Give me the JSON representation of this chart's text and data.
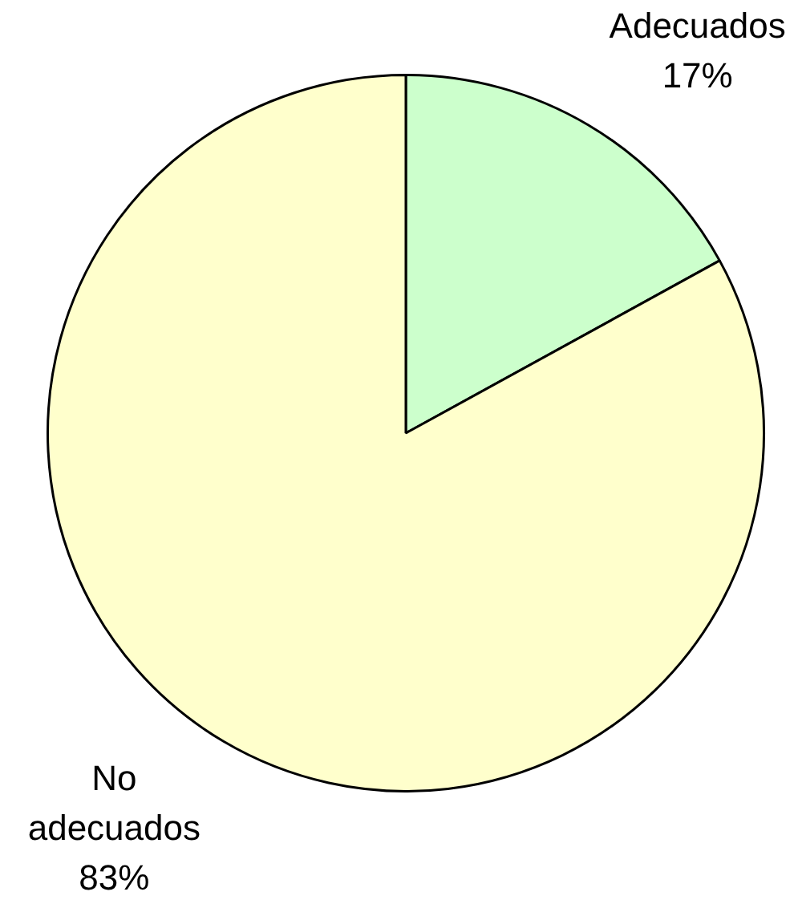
{
  "chart_data": {
    "type": "pie",
    "categories": [
      "Adecuados",
      "No adecuados"
    ],
    "values": [
      17,
      83
    ],
    "colors": [
      "#ccffcc",
      "#ffffcc"
    ],
    "value_labels": [
      "17%",
      "83%"
    ],
    "legend": false
  }
}
